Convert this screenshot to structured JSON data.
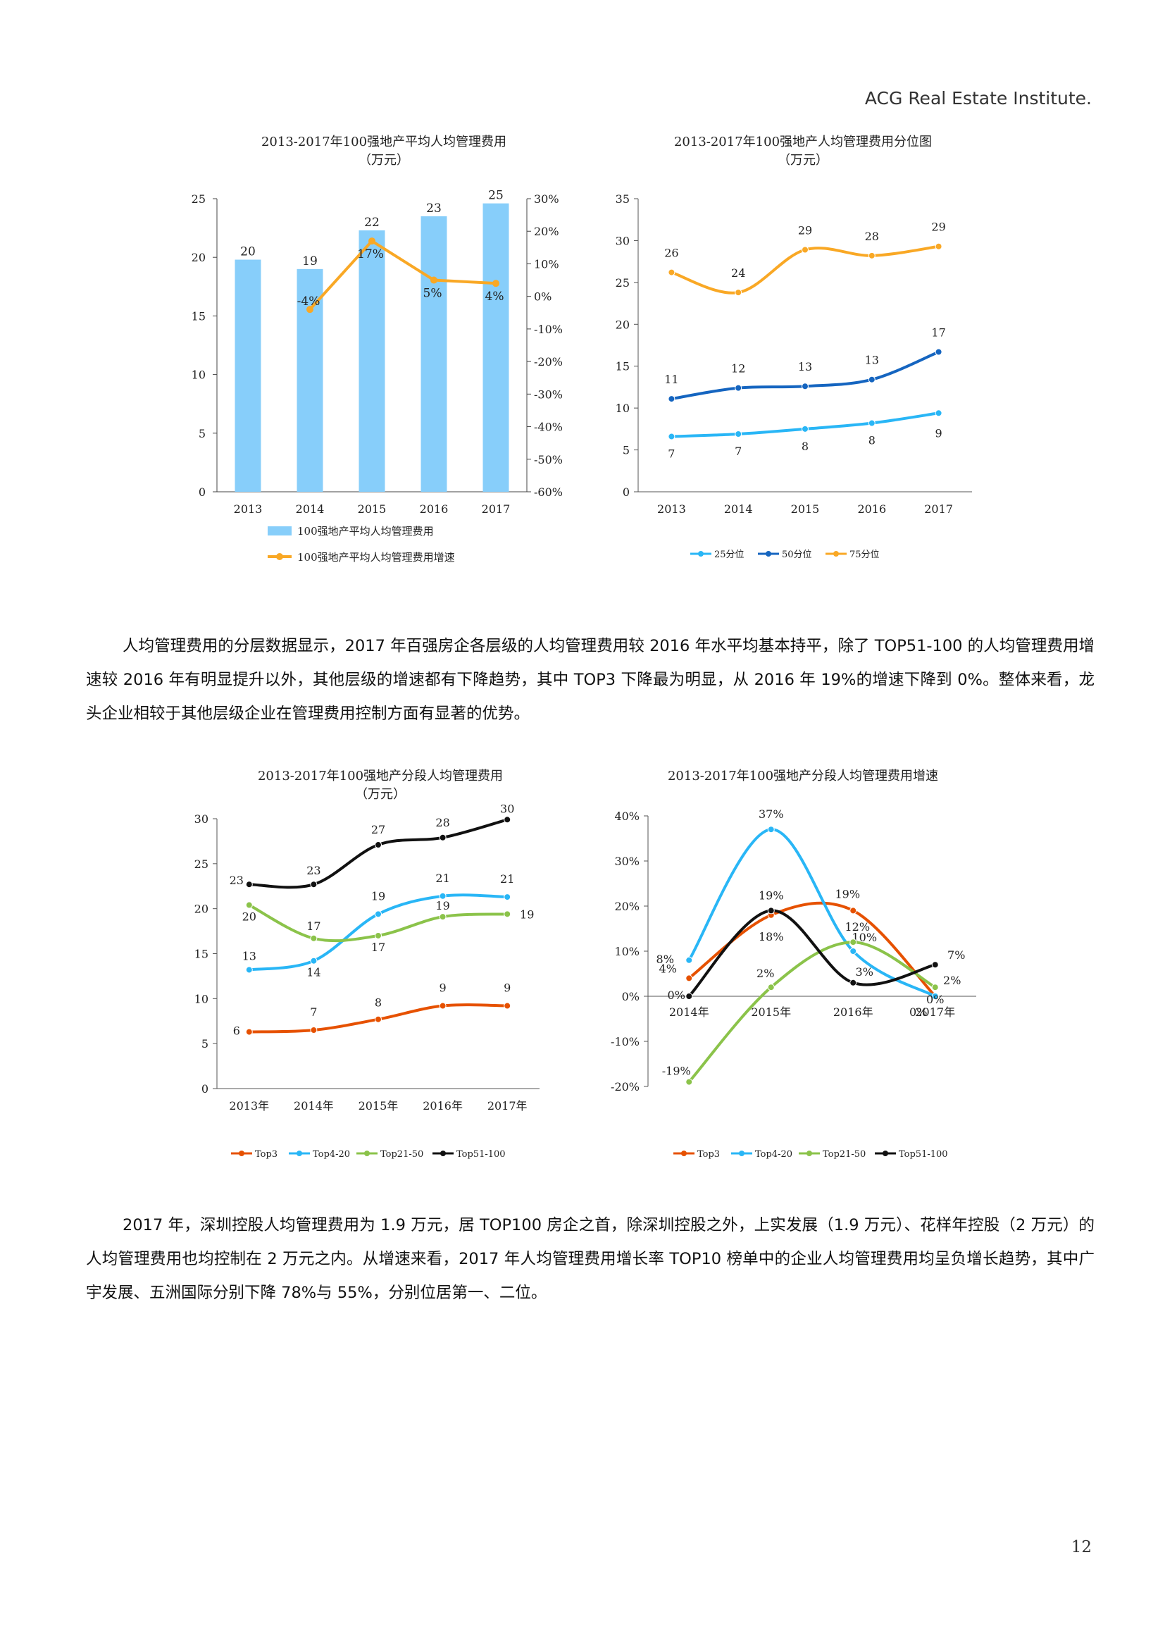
{
  "header": {
    "brand": "ACG",
    "brand_rest": "Real Estate Institute."
  },
  "page_number": "12",
  "paragraphs": {
    "p1": "人均管理费用的分层数据显示，2017 年百强房企各层级的人均管理费用较 2016 年水平均基本持平，除了 TOP51-100 的人均管理费用增速较 2016 年有明显提升以外，其他层级的增速都有下降趋势，其中 TOP3 下降最为明显，从 2016 年 19%的增速下降到 0%。整体来看，龙头企业相较于其他层级企业在管理费用控制方面有显著的优势。",
    "p2": "2017 年，深圳控股人均管理费用为 1.9 万元，居 TOP100 房企之首，除深圳控股之外，上实发展（1.9 万元）、花样年控股（2 万元）的人均管理费用也均控制在 2 万元之内。从增速来看，2017 年人均管理费用增长率 TOP10 榜单中的企业人均管理费用均呈负增长趋势，其中广宇发展、五洲国际分别下降 78%与 55%，分别位居第一、二位。"
  },
  "chart_data": [
    {
      "id": "c1",
      "type": "bar",
      "title": "2013-2017年100强地产平均人均管理费用",
      "subtitle": "（万元）",
      "categories": [
        "2013",
        "2014",
        "2015",
        "2016",
        "2017"
      ],
      "series": [
        {
          "name": "100强地产平均人均管理费用",
          "type": "bar",
          "color": "#87cefa",
          "values": [
            19.8,
            19.0,
            22.3,
            23.5,
            24.6
          ],
          "labels": [
            "20",
            "19",
            "22",
            "23",
            "25"
          ]
        },
        {
          "name": "100强地产平均人均管理费用增速",
          "type": "line",
          "axis": "right",
          "color": "#f9a825",
          "values": [
            null,
            -4,
            17,
            5,
            4
          ],
          "labels": [
            "",
            "-4%",
            "17%",
            "5%",
            "4%"
          ]
        }
      ],
      "y_left": {
        "min": 0,
        "max": 25,
        "ticks": [
          "0",
          "5",
          "10",
          "15",
          "20",
          "25"
        ]
      },
      "y_right": {
        "min": -60,
        "max": 30,
        "ticks": [
          "-60%",
          "-50%",
          "-40%",
          "-30%",
          "-20%",
          "-10%",
          "0%",
          "10%",
          "20%",
          "30%"
        ]
      },
      "legend": [
        "100强地产平均人均管理费用",
        "100强地产平均人均管理费用增速"
      ]
    },
    {
      "id": "c2",
      "type": "line",
      "title": "2013-2017年100强地产人均管理费用分位图",
      "subtitle": "（万元）",
      "categories": [
        "2013",
        "2014",
        "2015",
        "2016",
        "2017"
      ],
      "series": [
        {
          "name": "25分位",
          "color": "#29b6f6",
          "values": [
            6.6,
            6.9,
            7.5,
            8.2,
            9.4
          ],
          "labels": [
            "7",
            "7",
            "8",
            "8",
            "9"
          ]
        },
        {
          "name": "50分位",
          "color": "#1565c0",
          "values": [
            11.1,
            12.4,
            12.6,
            13.4,
            16.7
          ],
          "labels": [
            "11",
            "12",
            "13",
            "13",
            "17"
          ]
        },
        {
          "name": "75分位",
          "color": "#f9a825",
          "values": [
            26.2,
            23.8,
            28.9,
            28.2,
            29.3
          ],
          "labels": [
            "26",
            "24",
            "29",
            "28",
            "29"
          ]
        }
      ],
      "ylim": [
        0,
        35
      ],
      "y_ticks": [
        "0",
        "5",
        "10",
        "15",
        "20",
        "25",
        "30",
        "35"
      ],
      "legend": [
        "25分位",
        "50分位",
        "75分位"
      ]
    },
    {
      "id": "c3",
      "type": "line",
      "title": "2013-2017年100强地产分段人均管理费用",
      "subtitle": "（万元）",
      "categories": [
        "2013年",
        "2014年",
        "2015年",
        "2016年",
        "2017年"
      ],
      "series": [
        {
          "name": "Top3",
          "color": "#e65100",
          "values": [
            6.3,
            6.5,
            7.7,
            9.2,
            9.2
          ],
          "labels": [
            "6",
            "7",
            "8",
            "9",
            "9"
          ]
        },
        {
          "name": "Top4-20",
          "color": "#29b6f6",
          "values": [
            13.2,
            14.2,
            19.4,
            21.4,
            21.3
          ],
          "labels": [
            "13",
            "14",
            "19",
            "21",
            "21"
          ]
        },
        {
          "name": "Top21-50",
          "color": "#8bc34a",
          "values": [
            20.4,
            16.7,
            17.0,
            19.1,
            19.4
          ],
          "labels": [
            "20",
            "17",
            "17",
            "19",
            "19"
          ]
        },
        {
          "name": "Top51-100",
          "color": "#111111",
          "values": [
            22.7,
            22.7,
            27.1,
            27.9,
            29.9
          ],
          "labels": [
            "23",
            "23",
            "27",
            "28",
            "30"
          ]
        }
      ],
      "ylim": [
        0,
        30
      ],
      "y_ticks": [
        "0",
        "5",
        "10",
        "15",
        "20",
        "25",
        "30"
      ],
      "legend": [
        "Top3",
        "Top4-20",
        "Top21-50",
        "Top51-100"
      ]
    },
    {
      "id": "c4",
      "type": "line",
      "title": "2013-2017年100强地产分段人均管理费用增速",
      "categories": [
        "2014年",
        "2015年",
        "2016年",
        "2017年"
      ],
      "series": [
        {
          "name": "Top3",
          "color": "#e65100",
          "values": [
            4,
            18,
            19,
            0
          ],
          "labels": [
            "4%",
            "18%",
            "19%",
            "0%"
          ]
        },
        {
          "name": "Top4-20",
          "color": "#29b6f6",
          "values": [
            8,
            37,
            10,
            0
          ],
          "labels": [
            "8%",
            "37%",
            "10%",
            "0%"
          ]
        },
        {
          "name": "Top21-50",
          "color": "#8bc34a",
          "values": [
            -19,
            2,
            12,
            2
          ],
          "labels": [
            "-19%",
            "2%",
            "12%",
            "2%"
          ]
        },
        {
          "name": "Top51-100",
          "color": "#111111",
          "values": [
            0,
            19,
            3,
            7
          ],
          "labels": [
            "0%",
            "19%",
            "3%",
            "7%"
          ]
        }
      ],
      "ylim": [
        -20,
        40
      ],
      "y_ticks": [
        "-20%",
        "-10%",
        "0%",
        "10%",
        "20%",
        "30%",
        "40%"
      ],
      "legend": [
        "Top3",
        "Top4-20",
        "Top21-50",
        "Top51-100"
      ]
    }
  ]
}
